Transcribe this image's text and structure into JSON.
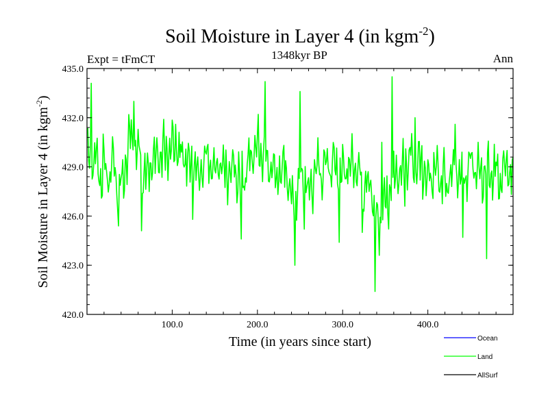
{
  "chart_data": {
    "type": "line",
    "title": "Soil Moisture in Layer 4 (in kgm",
    "title_superscript": "-2",
    "title_close": ")",
    "subtitle": "1348kyr BP",
    "left_label": "Expt = tFmCT",
    "right_label": "Ann",
    "xlabel": "Time (in years since start)",
    "ylabel": "Soil Moisture in Layer 4 (in kgm",
    "ylabel_superscript": "-2",
    "ylabel_close": ")",
    "xlim": [
      0,
      500
    ],
    "ylim": [
      420,
      435
    ],
    "x_ticks": [
      100,
      200,
      300,
      400
    ],
    "x_tick_labels": [
      "100.0",
      "200.0",
      "300.0",
      "400.0"
    ],
    "y_ticks": [
      420,
      423,
      426,
      429,
      432,
      435
    ],
    "y_tick_labels": [
      "420.0",
      "423.0",
      "426.0",
      "429.0",
      "432.0",
      "435.0"
    ],
    "legend": [
      {
        "name": "Ocean",
        "color": "#0000ff"
      },
      {
        "name": "Land",
        "color": "#00ff00"
      },
      {
        "name": "AllSurf",
        "color": "#000000"
      }
    ],
    "series": [
      {
        "name": "Land",
        "color": "#00ff00",
        "x_start": 1,
        "x_step": 10,
        "note": "annual series (~500 points); values below are 10-year anchors, the drawing script interpolates with year-to-year variability",
        "values": [
          429.5,
          429.0,
          428.3,
          429.0,
          427.5,
          431.0,
          429.8,
          428.7,
          429.6,
          429.8,
          430.0,
          429.8,
          429.2,
          428.4,
          429.5,
          429.0,
          428.8,
          429.2,
          427.9,
          429.3,
          430.5,
          429.2,
          428.4,
          429.0,
          426.5,
          428.3,
          427.5,
          428.8,
          429.4,
          429.0,
          428.7,
          429.0,
          428.3,
          428.0,
          425.0,
          427.0,
          428.1,
          429.0,
          429.8,
          429.3,
          428.3,
          429.2,
          427.8,
          429.0,
          428.2,
          429.3,
          428.0,
          429.2,
          428.5,
          428.5
        ]
      }
    ],
    "highlights": [
      {
        "x": 5,
        "y": 434.1
      },
      {
        "x": 19,
        "y": 431.0
      },
      {
        "x": 37,
        "y": 425.4
      },
      {
        "x": 55,
        "y": 433.0
      },
      {
        "x": 64,
        "y": 425.1
      },
      {
        "x": 104,
        "y": 431.6
      },
      {
        "x": 124,
        "y": 425.8
      },
      {
        "x": 181,
        "y": 424.6
      },
      {
        "x": 209,
        "y": 434.2
      },
      {
        "x": 244,
        "y": 423.0
      },
      {
        "x": 250,
        "y": 433.6
      },
      {
        "x": 255,
        "y": 425.2
      },
      {
        "x": 296,
        "y": 424.4
      },
      {
        "x": 323,
        "y": 425.0
      },
      {
        "x": 338,
        "y": 421.4
      },
      {
        "x": 346,
        "y": 430.5
      },
      {
        "x": 358,
        "y": 434.5
      },
      {
        "x": 373,
        "y": 426.6
      },
      {
        "x": 385,
        "y": 432.0
      },
      {
        "x": 432,
        "y": 431.6
      },
      {
        "x": 441,
        "y": 424.7
      },
      {
        "x": 459,
        "y": 430.5
      },
      {
        "x": 469,
        "y": 423.4
      },
      {
        "x": 493,
        "y": 430.0
      }
    ]
  }
}
